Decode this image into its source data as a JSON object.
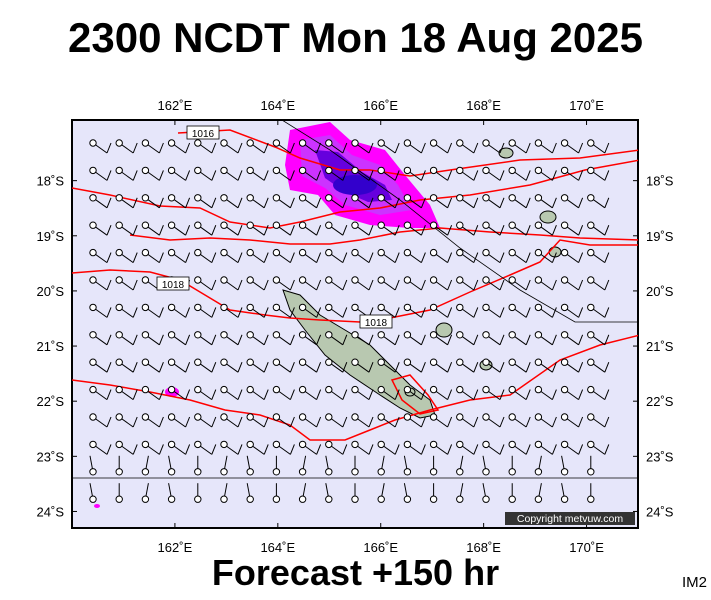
{
  "title": "2300 NCDT Mon 18 Aug 2025",
  "footer": "Forecast +150 hr",
  "code": "IM2",
  "copyright": "Copyright metvuw.com",
  "map": {
    "lon_range": [
      160,
      171
    ],
    "lat_range": [
      -24.3,
      -16.9
    ],
    "lon_ticks": [
      "162˚E",
      "164˚E",
      "166˚E",
      "168˚E",
      "170˚E"
    ],
    "lat_ticks": [
      "18˚S",
      "19˚S",
      "20˚S",
      "21˚S",
      "22˚S",
      "23˚S",
      "24˚S"
    ],
    "isobar_labels": [
      "1016",
      "1018",
      "1018"
    ],
    "colors": {
      "ocean": "#e6e6fa",
      "isobar": "#ff0000",
      "rain_light": "#ff00ff",
      "rain_mid": "#cc33ff",
      "rain_heavy": "#3300cc",
      "land": "#b8c8b0"
    }
  }
}
